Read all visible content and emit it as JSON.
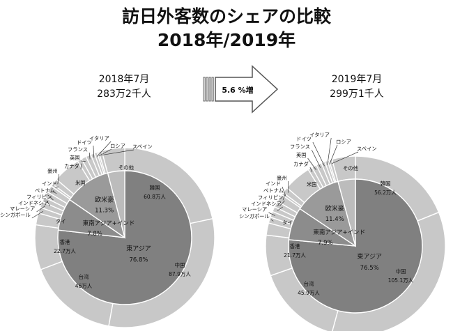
{
  "title_line1": "訪日外客数のシェアの比較",
  "title_line2": "2018年/2019年",
  "arrow_label": "5.6 %増",
  "chart_data": [
    {
      "type": "pie",
      "period": "2018年7月",
      "total": "283万2千人",
      "inner": [
        {
          "name": "東アジア",
          "pct_label": "76.8%",
          "value": 76.8
        },
        {
          "name": "東南アジア+インド",
          "pct_label": "7.8%",
          "value": 7.8
        },
        {
          "name": "欧米豪",
          "pct_label": "11.3%",
          "value": 11.3
        },
        {
          "name": "",
          "pct_label": "",
          "value": 4.1
        }
      ],
      "outer": [
        {
          "name": "韓国",
          "amount": "60.8万人",
          "value": 60.8
        },
        {
          "name": "中国",
          "amount": "87.9万人",
          "value": 87.9
        },
        {
          "name": "台湾",
          "amount": "46万人",
          "value": 46.0
        },
        {
          "name": "香港",
          "amount": "22.7万人",
          "value": 22.7
        },
        {
          "name": "タイ",
          "amount": "",
          "value": 6.0
        },
        {
          "name": "シンガポール",
          "amount": "",
          "value": 3.0
        },
        {
          "name": "マレーシア",
          "amount": "",
          "value": 3.0
        },
        {
          "name": "インドネシア",
          "amount": "",
          "value": 2.5
        },
        {
          "name": "フィリピン",
          "amount": "",
          "value": 3.0
        },
        {
          "name": "ベトナム",
          "amount": "",
          "value": 3.5
        },
        {
          "name": "インド",
          "amount": "",
          "value": 1.2
        },
        {
          "name": "豪州",
          "amount": "",
          "value": 3.0
        },
        {
          "name": "米国",
          "amount": "",
          "value": 14.0
        },
        {
          "name": "カナダ",
          "amount": "",
          "value": 2.2
        },
        {
          "name": "英国",
          "amount": "",
          "value": 2.5
        },
        {
          "name": "フランス",
          "amount": "",
          "value": 2.6
        },
        {
          "name": "ドイツ",
          "amount": "",
          "value": 1.9
        },
        {
          "name": "イタリア",
          "amount": "",
          "value": 1.4
        },
        {
          "name": "ロシア",
          "amount": "",
          "value": 0.9
        },
        {
          "name": "スペイン",
          "amount": "",
          "value": 1.6
        },
        {
          "name": "その他",
          "amount": "",
          "value": 11.6
        }
      ]
    },
    {
      "type": "pie",
      "period": "2019年7月",
      "total": "299万1千人",
      "inner": [
        {
          "name": "東アジア",
          "pct_label": "76.5%",
          "value": 76.5
        },
        {
          "name": "東南アジア+インド",
          "pct_label": "7.9%",
          "value": 7.9
        },
        {
          "name": "欧米豪",
          "pct_label": "11.4%",
          "value": 11.4
        },
        {
          "name": "",
          "pct_label": "",
          "value": 4.2
        }
      ],
      "outer": [
        {
          "name": "韓国",
          "amount": "56.2万人",
          "value": 56.2
        },
        {
          "name": "中国",
          "amount": "105.1万人",
          "value": 105.1
        },
        {
          "name": "台湾",
          "amount": "45.9万人",
          "value": 45.9
        },
        {
          "name": "香港",
          "amount": "21.7万人",
          "value": 21.7
        },
        {
          "name": "タイ",
          "amount": "",
          "value": 6.5
        },
        {
          "name": "シンガポール",
          "amount": "",
          "value": 3.2
        },
        {
          "name": "マレーシア",
          "amount": "",
          "value": 3.2
        },
        {
          "name": "インドネシア",
          "amount": "",
          "value": 2.7
        },
        {
          "name": "フィリピン",
          "amount": "",
          "value": 3.2
        },
        {
          "name": "ベトナム",
          "amount": "",
          "value": 4.2
        },
        {
          "name": "インド",
          "amount": "",
          "value": 1.3
        },
        {
          "name": "豪州",
          "amount": "",
          "value": 3.3
        },
        {
          "name": "米国",
          "amount": "",
          "value": 14.8
        },
        {
          "name": "カナダ",
          "amount": "",
          "value": 2.3
        },
        {
          "name": "英国",
          "amount": "",
          "value": 2.6
        },
        {
          "name": "フランス",
          "amount": "",
          "value": 2.8
        },
        {
          "name": "ドイツ",
          "amount": "",
          "value": 2.0
        },
        {
          "name": "イタリア",
          "amount": "",
          "value": 1.5
        },
        {
          "name": "ロシア",
          "amount": "",
          "value": 0.9
        },
        {
          "name": "スペイン",
          "amount": "",
          "value": 1.6
        },
        {
          "name": "その他",
          "amount": "",
          "value": 12.5
        }
      ]
    }
  ]
}
